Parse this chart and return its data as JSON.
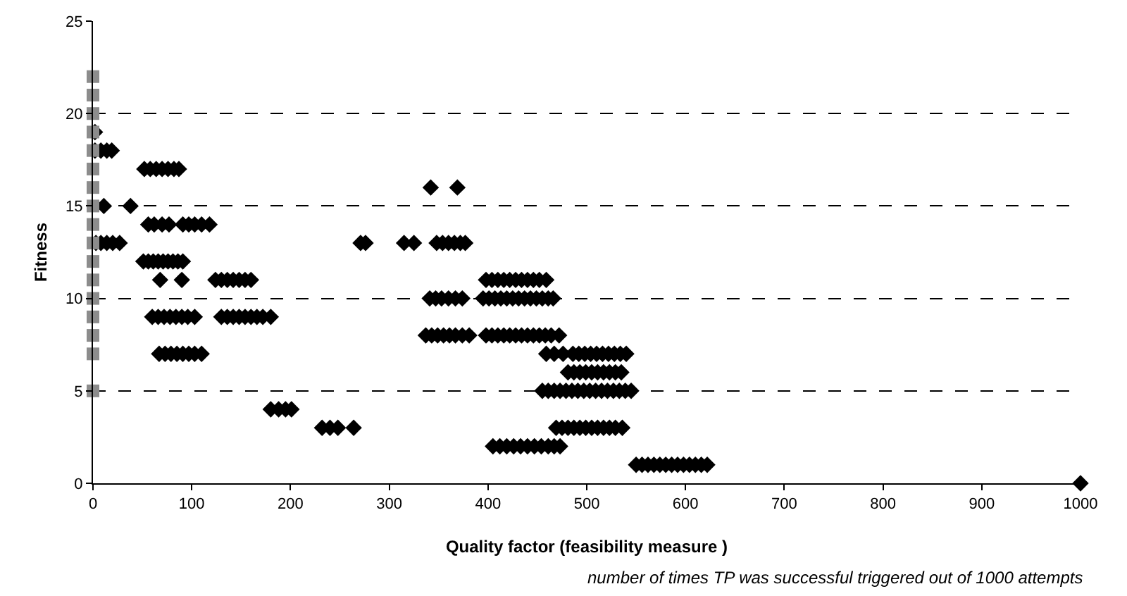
{
  "chart_data": {
    "type": "scatter",
    "xlabel": "Quality factor (feasibility measure )",
    "ylabel": "Fitness",
    "annotations": [
      "number of times TP was successful triggered out of 1000 attempts"
    ],
    "xlim": [
      0,
      1000
    ],
    "ylim": [
      0,
      25
    ],
    "xticks": [
      0,
      100,
      200,
      300,
      400,
      500,
      600,
      700,
      800,
      900,
      1000
    ],
    "yticks": [
      0,
      5,
      10,
      15,
      20,
      25
    ],
    "grid": "y",
    "series": [
      {
        "color": "#8c8c8c",
        "marker": "square",
        "x": [
          0,
          0,
          0,
          0,
          0,
          0,
          0,
          0,
          0,
          0,
          0,
          0,
          0,
          0,
          0,
          0,
          0
        ],
        "values": [
          5,
          7,
          8,
          9,
          10,
          11,
          12,
          13,
          14,
          15,
          16,
          17,
          18,
          19,
          20,
          21,
          22
        ]
      },
      {
        "color": "#000000",
        "marker": "diamond",
        "x": [
          2,
          2,
          8,
          14,
          19,
          52,
          58,
          64,
          70,
          76,
          82,
          87,
          342,
          369,
          11,
          38,
          56,
          62,
          70,
          77,
          91,
          97,
          103,
          110,
          118,
          3,
          8,
          14,
          20,
          27,
          271,
          276,
          315,
          325,
          348,
          354,
          360,
          366,
          372,
          377,
          51,
          56,
          61,
          66,
          71,
          76,
          81,
          86,
          91,
          68,
          90,
          124,
          130,
          136,
          142,
          148,
          154,
          160,
          398,
          404,
          410,
          416,
          422,
          428,
          434,
          440,
          446,
          452,
          459,
          341,
          347,
          353,
          360,
          367,
          374,
          395,
          401,
          407,
          413,
          419,
          425,
          431,
          437,
          443,
          449,
          455,
          461,
          466,
          60,
          66,
          72,
          78,
          84,
          90,
          96,
          103,
          130,
          136,
          142,
          148,
          154,
          160,
          166,
          172,
          180,
          337,
          343,
          349,
          355,
          361,
          367,
          374,
          381,
          398,
          404,
          410,
          416,
          422,
          428,
          434,
          440,
          446,
          452,
          458,
          464,
          472,
          67,
          73,
          79,
          85,
          91,
          97,
          103,
          110,
          459,
          467,
          476,
          486,
          492,
          498,
          504,
          510,
          516,
          522,
          528,
          534,
          540,
          481,
          487,
          493,
          499,
          505,
          511,
          517,
          523,
          529,
          535,
          455,
          461,
          467,
          473,
          479,
          485,
          491,
          497,
          503,
          509,
          515,
          521,
          527,
          533,
          539,
          545,
          180,
          188,
          195,
          201,
          232,
          240,
          248,
          264,
          469,
          475,
          481,
          487,
          493,
          499,
          505,
          511,
          517,
          523,
          529,
          536,
          405,
          412,
          419,
          426,
          433,
          440,
          447,
          454,
          461,
          467,
          473,
          550,
          556,
          562,
          568,
          574,
          580,
          586,
          592,
          598,
          604,
          610,
          616,
          622,
          1000
        ],
        "values": [
          19,
          18,
          18,
          18,
          18,
          17,
          17,
          17,
          17,
          17,
          17,
          17,
          16,
          16,
          15,
          15,
          14,
          14,
          14,
          14,
          14,
          14,
          14,
          14,
          14,
          13,
          13,
          13,
          13,
          13,
          13,
          13,
          13,
          13,
          13,
          13,
          13,
          13,
          13,
          13,
          12,
          12,
          12,
          12,
          12,
          12,
          12,
          12,
          12,
          11,
          11,
          11,
          11,
          11,
          11,
          11,
          11,
          11,
          11,
          11,
          11,
          11,
          11,
          11,
          11,
          11,
          11,
          11,
          11,
          10,
          10,
          10,
          10,
          10,
          10,
          10,
          10,
          10,
          10,
          10,
          10,
          10,
          10,
          10,
          10,
          10,
          10,
          10,
          9,
          9,
          9,
          9,
          9,
          9,
          9,
          9,
          9,
          9,
          9,
          9,
          9,
          9,
          9,
          9,
          9,
          8,
          8,
          8,
          8,
          8,
          8,
          8,
          8,
          8,
          8,
          8,
          8,
          8,
          8,
          8,
          8,
          8,
          8,
          8,
          8,
          8,
          7,
          7,
          7,
          7,
          7,
          7,
          7,
          7,
          7,
          7,
          7,
          7,
          7,
          7,
          7,
          7,
          7,
          7,
          7,
          7,
          7,
          6,
          6,
          6,
          6,
          6,
          6,
          6,
          6,
          6,
          6,
          5,
          5,
          5,
          5,
          5,
          5,
          5,
          5,
          5,
          5,
          5,
          5,
          5,
          5,
          5,
          5,
          4,
          4,
          4,
          4,
          3,
          3,
          3,
          3,
          3,
          3,
          3,
          3,
          3,
          3,
          3,
          3,
          3,
          3,
          3,
          3,
          2,
          2,
          2,
          2,
          2,
          2,
          2,
          2,
          2,
          2,
          2,
          1,
          1,
          1,
          1,
          1,
          1,
          1,
          1,
          1,
          1,
          1,
          1,
          1,
          0
        ]
      }
    ]
  }
}
